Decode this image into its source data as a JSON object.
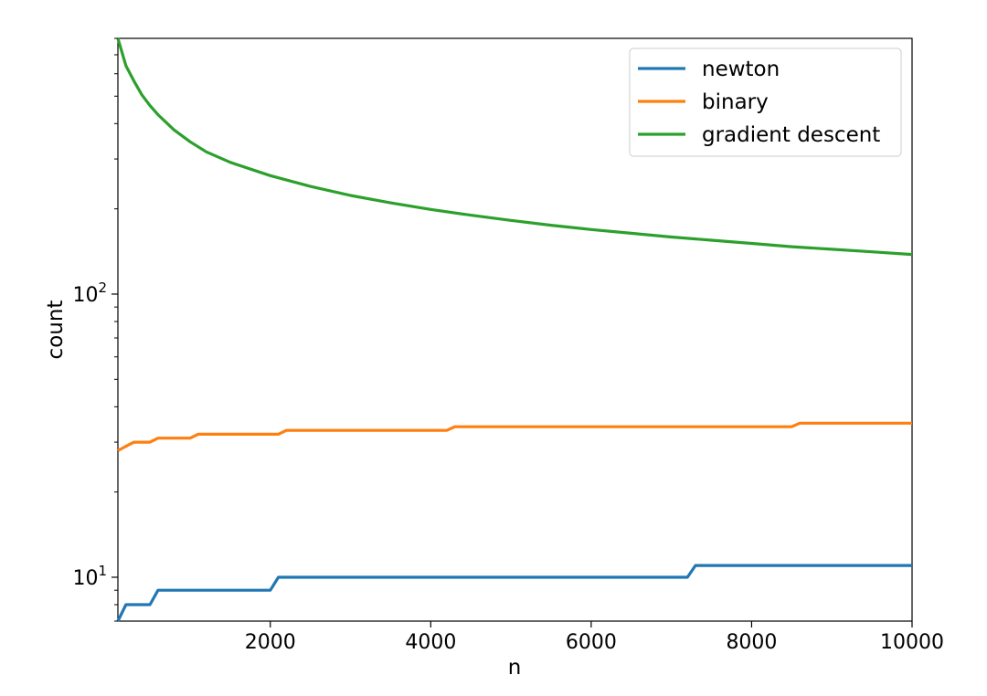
{
  "chart_data": {
    "type": "line",
    "title": "",
    "xlabel": "n",
    "ylabel": "count",
    "xlim": [
      100,
      10000
    ],
    "ylim": [
      7,
      800
    ],
    "yscale": "log",
    "grid": false,
    "legend_position": "top-right",
    "x_ticks": [
      {
        "value": 2000,
        "label": "2000"
      },
      {
        "value": 4000,
        "label": "4000"
      },
      {
        "value": 6000,
        "label": "6000"
      },
      {
        "value": 8000,
        "label": "8000"
      },
      {
        "value": 10000,
        "label": "10000"
      }
    ],
    "y_ticks": [
      {
        "value": 10,
        "base": "10",
        "exp": "1"
      },
      {
        "value": 100,
        "base": "10",
        "exp": "2"
      }
    ],
    "series": [
      {
        "name": "newton",
        "color": "#1f77b4",
        "x": [
          100,
          200,
          300,
          400,
          500,
          600,
          700,
          800,
          900,
          1000,
          1100,
          1200,
          1300,
          1400,
          1500,
          1600,
          1700,
          1800,
          1900,
          2000,
          2100,
          2200,
          3000,
          4000,
          5000,
          6000,
          7000,
          7200,
          7300,
          8000,
          9000,
          10000
        ],
        "values": [
          7,
          8,
          8,
          8,
          8,
          9,
          9,
          9,
          9,
          9,
          9,
          9,
          9,
          9,
          9,
          9,
          9,
          9,
          9,
          9,
          10,
          10,
          10,
          10,
          10,
          10,
          10,
          10,
          11,
          11,
          11,
          11
        ]
      },
      {
        "name": "binary",
        "color": "#ff7f0e",
        "x": [
          100,
          200,
          300,
          400,
          500,
          600,
          700,
          800,
          900,
          1000,
          1100,
          1200,
          1500,
          2000,
          2100,
          2200,
          3000,
          4000,
          4200,
          4300,
          5000,
          6000,
          7000,
          8000,
          8500,
          8600,
          9000,
          10000
        ],
        "values": [
          28,
          29,
          30,
          30,
          30,
          31,
          31,
          31,
          31,
          31,
          32,
          32,
          32,
          32,
          32,
          33,
          33,
          33,
          33,
          34,
          34,
          34,
          34,
          34,
          34,
          35,
          35,
          35
        ]
      },
      {
        "name": "gradient descent",
        "color": "#2ca02c",
        "x": [
          100,
          200,
          300,
          400,
          500,
          600,
          800,
          1000,
          1200,
          1500,
          2000,
          2500,
          3000,
          3500,
          4000,
          4500,
          5000,
          5500,
          6000,
          6500,
          7000,
          7500,
          8000,
          8500,
          9000,
          9500,
          10000
        ],
        "values": [
          800,
          640,
          565,
          505,
          463,
          430,
          380,
          345,
          318,
          292,
          262,
          240,
          223,
          210,
          199,
          190,
          182,
          175,
          169,
          164,
          159,
          155,
          151,
          147,
          144,
          141,
          138
        ]
      }
    ]
  }
}
